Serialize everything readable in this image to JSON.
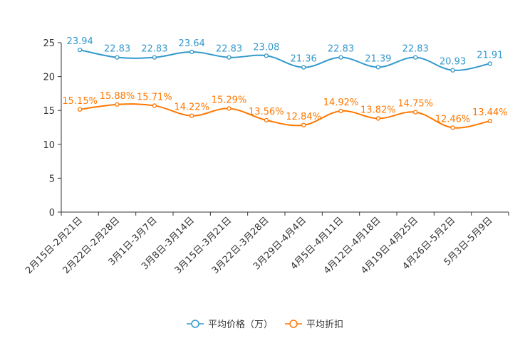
{
  "chart_data": {
    "type": "line",
    "title": "",
    "xlabel": "",
    "ylabel": "",
    "ylim": [
      0,
      25
    ],
    "yticks": [
      0,
      5,
      10,
      15,
      20,
      25
    ],
    "grid": false,
    "legend_position": "bottom-center",
    "categories": [
      "2月15日-2月21日",
      "2月22日-2月28日",
      "3月1日-3月7日",
      "3月8日-3月14日",
      "3月15日-3月21日",
      "3月22日-3月28日",
      "3月29日-4月4日",
      "4月5日-4月11日",
      "4月12日-4月18日",
      "4月19日-4月25日",
      "4月26日-5月2日",
      "5月3日-5月9日"
    ],
    "series": [
      {
        "name": "平均价格（万）",
        "color": "#3399cc",
        "values": [
          23.94,
          22.83,
          22.83,
          23.64,
          22.83,
          23.08,
          21.36,
          22.83,
          21.39,
          22.83,
          20.93,
          21.91
        ],
        "labels": [
          "23.94",
          "22.83",
          "22.83",
          "23.64",
          "22.83",
          "23.08",
          "21.36",
          "22.83",
          "21.39",
          "22.83",
          "20.93",
          "21.91"
        ]
      },
      {
        "name": "平均折扣",
        "color": "#ff7700",
        "values": [
          15.15,
          15.88,
          15.71,
          14.22,
          15.29,
          13.56,
          12.84,
          14.92,
          13.82,
          14.75,
          12.46,
          13.44
        ],
        "labels": [
          "15.15%",
          "15.88%",
          "15.71%",
          "14.22%",
          "15.29%",
          "13.56%",
          "12.84%",
          "14.92%",
          "13.82%",
          "14.75%",
          "12.46%",
          "13.44%"
        ]
      }
    ]
  }
}
